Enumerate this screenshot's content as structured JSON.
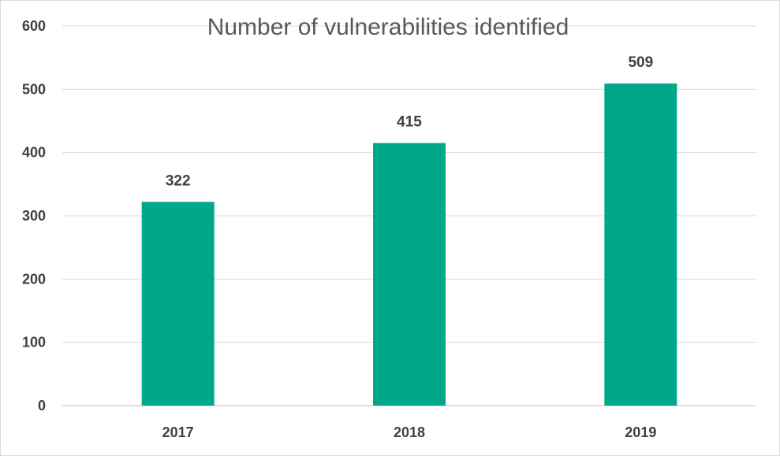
{
  "chart_data": {
    "type": "bar",
    "title": "Number of vulnerabilities identified",
    "categories": [
      "2017",
      "2018",
      "2019"
    ],
    "series": [
      {
        "values": [
          322,
          415,
          509
        ],
        "color": "#00a88a"
      }
    ],
    "data_labels": [
      "322",
      "415",
      "509"
    ],
    "xlabel": "",
    "ylabel": "",
    "ylim": [
      0,
      600
    ],
    "yticks": [
      "0",
      "100",
      "200",
      "300",
      "400",
      "500",
      "600"
    ],
    "grid": true,
    "legend": "none"
  }
}
